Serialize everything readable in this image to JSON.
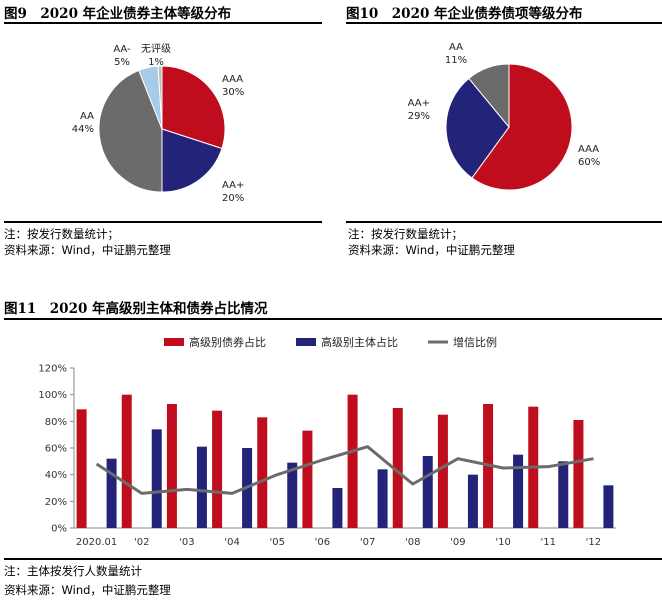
{
  "colors": {
    "red": "#c00d1e",
    "navy": "#23237a",
    "gray": "#6b6b6b",
    "lightblue": "#a6cbe8",
    "light_gray": "#bcbcbc"
  },
  "fig9": {
    "title": "图9　2020 年企业债券主体等级分布",
    "note1": "注：按发行数量统计；",
    "note2": "资料来源：Wind，中证鹏元整理"
  },
  "fig10": {
    "title": "图10　2020 年企业债券债项等级分布",
    "note1": "注：按发行数量统计；",
    "note2": "资料来源：Wind，中证鹏元整理"
  },
  "fig11": {
    "title": "图11　2020 年高级别主体和债券占比情况",
    "note1": "注：主体按发行人数量统计",
    "note2": "资料来源：Wind，中证鹏元整理"
  },
  "chart_data": [
    {
      "type": "pie",
      "labels": [
        "AAA",
        "AA+",
        "AA",
        "AA-",
        "无评级"
      ],
      "values": [
        30,
        20,
        44,
        5,
        1
      ],
      "value_labels": [
        "30%",
        "20%",
        "44%",
        "5%",
        "1%"
      ],
      "colors": [
        "#c00d1e",
        "#23237a",
        "#6b6b6b",
        "#a6cbe8",
        "#bcbcbc"
      ]
    },
    {
      "type": "pie",
      "labels": [
        "AAA",
        "AA+",
        "AA"
      ],
      "values": [
        60,
        29,
        11
      ],
      "value_labels": [
        "60%",
        "29%",
        "11%"
      ],
      "colors": [
        "#c00d1e",
        "#23237a",
        "#6b6b6b"
      ]
    },
    {
      "type": "bar",
      "categories": [
        "2020.01",
        "'02",
        "'03",
        "'04",
        "'05",
        "'06",
        "'07",
        "'08",
        "'09",
        "'10",
        "'11",
        "'12"
      ],
      "series": [
        {
          "name": "高级别债券占比",
          "type": "bar",
          "color": "#c00d1e",
          "values": [
            89,
            100,
            93,
            88,
            83,
            73,
            100,
            90,
            85,
            93,
            91,
            81
          ]
        },
        {
          "name": "高级别主体占比",
          "type": "bar",
          "color": "#23237a",
          "values": [
            52,
            74,
            61,
            60,
            49,
            30,
            44,
            54,
            40,
            55,
            50,
            32
          ]
        },
        {
          "name": "增信比例",
          "type": "line",
          "color": "#6b6b6b",
          "values": [
            48,
            26,
            29,
            26,
            40,
            51,
            61,
            33,
            52,
            45,
            46,
            52
          ]
        }
      ],
      "yticks": [
        "0%",
        "20%",
        "40%",
        "60%",
        "80%",
        "100%",
        "120%"
      ],
      "ylim": [
        0,
        120
      ],
      "legend_position": "top"
    }
  ]
}
